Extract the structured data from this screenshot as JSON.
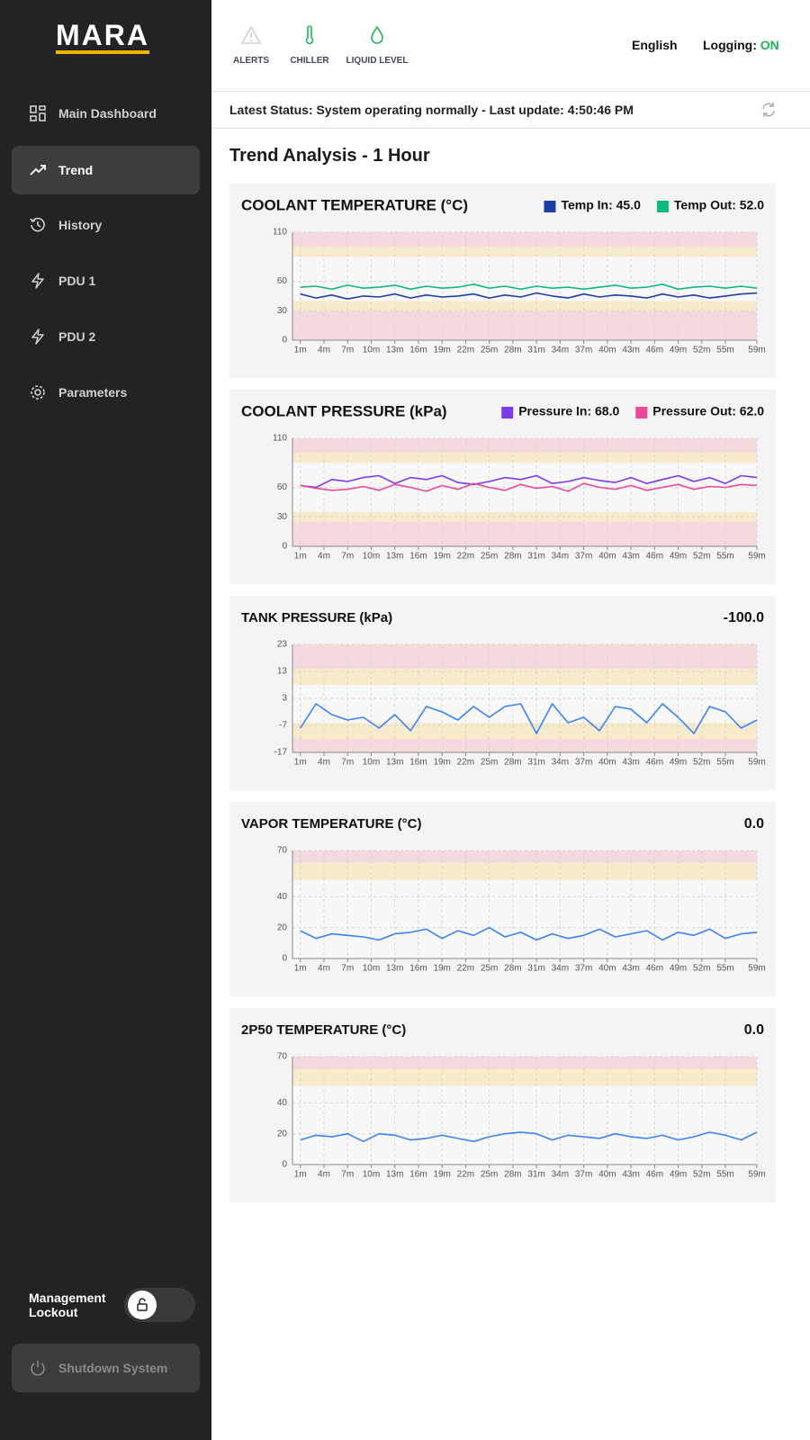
{
  "sidebar": {
    "logo": "MARA",
    "nav": [
      "Main Dashboard",
      "Trend",
      "History",
      "PDU 1",
      "PDU 2",
      "Parameters"
    ],
    "active": 1,
    "lockout": "Management Lockout",
    "shutdown": "Shutdown System"
  },
  "topbar": {
    "icons": [
      "ALERTS",
      "CHILLER",
      "LIQUID LEVEL"
    ],
    "language": "English",
    "logging_label": "Logging:",
    "logging_state": "ON"
  },
  "status": "Latest Status: System operating normally - Last update: 4:50:46 PM",
  "heading": "Trend Analysis - 1 Hour",
  "chart_data": [
    {
      "type": "line",
      "title": "COOLANT TEMPERATURE (°C)",
      "x": [
        1,
        3,
        5,
        7,
        9,
        11,
        13,
        15,
        17,
        19,
        21,
        23,
        25,
        27,
        29,
        31,
        33,
        35,
        37,
        39,
        41,
        43,
        45,
        47,
        49,
        51,
        53,
        55,
        57,
        59
      ],
      "series": [
        {
          "name": "Temp In: 45.0",
          "color": "#1e3fa8",
          "values": [
            47,
            43,
            46,
            42,
            45,
            44,
            47,
            43,
            46,
            44,
            45,
            47,
            43,
            46,
            44,
            48,
            45,
            43,
            47,
            44,
            46,
            45,
            43,
            47,
            44,
            46,
            43,
            45,
            47,
            48
          ]
        },
        {
          "name": "Temp Out: 52.0",
          "color": "#10b981",
          "values": [
            54,
            55,
            52,
            56,
            53,
            54,
            56,
            52,
            55,
            53,
            54,
            57,
            53,
            55,
            52,
            55,
            53,
            54,
            52,
            54,
            56,
            53,
            54,
            57,
            52,
            54,
            55,
            53,
            55,
            53
          ]
        }
      ],
      "xlim": [
        0,
        59
      ],
      "xticks": [
        {
          "value": 1,
          "label": "1m"
        },
        {
          "value": 4,
          "label": "4m"
        },
        {
          "value": 7,
          "label": "7m"
        },
        {
          "value": 10,
          "label": "10m"
        },
        {
          "value": 13,
          "label": "13m"
        },
        {
          "value": 16,
          "label": "16m"
        },
        {
          "value": 19,
          "label": "19m"
        },
        {
          "value": 22,
          "label": "22m"
        },
        {
          "value": 25,
          "label": "25m"
        },
        {
          "value": 28,
          "label": "28m"
        },
        {
          "value": 31,
          "label": "31m"
        },
        {
          "value": 34,
          "label": "34m"
        },
        {
          "value": 37,
          "label": "37m"
        },
        {
          "value": 40,
          "label": "40m"
        },
        {
          "value": 43,
          "label": "43m"
        },
        {
          "value": 46,
          "label": "46m"
        },
        {
          "value": 49,
          "label": "49m"
        },
        {
          "value": 52,
          "label": "52m"
        },
        {
          "value": 55,
          "label": "55m"
        },
        {
          "value": 59,
          "label": "59m"
        }
      ],
      "ylim": [
        0,
        110
      ],
      "yticks": [
        0,
        30,
        60,
        110
      ],
      "zones": [
        {
          "from": 95,
          "to": 110,
          "color": "#f5dadd"
        },
        {
          "from": 85,
          "to": 95,
          "color": "#f7ebcc"
        },
        {
          "from": 30,
          "to": 40,
          "color": "#f7ebcc"
        },
        {
          "from": 0,
          "to": 30,
          "color": "#f5dadd"
        }
      ],
      "grid": true
    },
    {
      "type": "line",
      "title": "COOLANT PRESSURE (kPa)",
      "x": [
        1,
        3,
        5,
        7,
        9,
        11,
        13,
        15,
        17,
        19,
        21,
        23,
        25,
        27,
        29,
        31,
        33,
        35,
        37,
        39,
        41,
        43,
        45,
        47,
        49,
        51,
        53,
        55,
        57,
        59
      ],
      "series": [
        {
          "name": "Pressure In: 68.0",
          "color": "#7c3aed",
          "values": [
            62,
            60,
            68,
            66,
            70,
            72,
            64,
            70,
            68,
            72,
            65,
            63,
            66,
            70,
            68,
            72,
            64,
            66,
            70,
            67,
            65,
            70,
            64,
            68,
            72,
            66,
            70,
            64,
            72,
            70
          ]
        },
        {
          "name": "Pressure Out: 62.0",
          "color": "#ec4899",
          "values": [
            62,
            59,
            57,
            58,
            61,
            57,
            63,
            60,
            56,
            62,
            58,
            64,
            60,
            57,
            63,
            59,
            61,
            56,
            64,
            60,
            58,
            62,
            57,
            60,
            63,
            58,
            61,
            60,
            63,
            62
          ]
        }
      ],
      "xlim": [
        0,
        59
      ],
      "xticks": [
        {
          "value": 1,
          "label": "1m"
        },
        {
          "value": 4,
          "label": "4m"
        },
        {
          "value": 7,
          "label": "7m"
        },
        {
          "value": 10,
          "label": "10m"
        },
        {
          "value": 13,
          "label": "13m"
        },
        {
          "value": 16,
          "label": "16m"
        },
        {
          "value": 19,
          "label": "19m"
        },
        {
          "value": 22,
          "label": "22m"
        },
        {
          "value": 25,
          "label": "25m"
        },
        {
          "value": 28,
          "label": "28m"
        },
        {
          "value": 31,
          "label": "31m"
        },
        {
          "value": 34,
          "label": "34m"
        },
        {
          "value": 37,
          "label": "37m"
        },
        {
          "value": 40,
          "label": "40m"
        },
        {
          "value": 43,
          "label": "43m"
        },
        {
          "value": 46,
          "label": "46m"
        },
        {
          "value": 49,
          "label": "49m"
        },
        {
          "value": 52,
          "label": "52m"
        },
        {
          "value": 55,
          "label": "55m"
        },
        {
          "value": 59,
          "label": "59m"
        }
      ],
      "ylim": [
        0,
        110
      ],
      "yticks": [
        0,
        30,
        60,
        110
      ],
      "zones": [
        {
          "from": 95,
          "to": 110,
          "color": "#f5dadd"
        },
        {
          "from": 85,
          "to": 95,
          "color": "#f7ebcc"
        },
        {
          "from": 25,
          "to": 35,
          "color": "#f7ebcc"
        },
        {
          "from": 0,
          "to": 25,
          "color": "#f5dadd"
        }
      ],
      "grid": true
    },
    {
      "type": "line",
      "title": "TANK PRESSURE (kPa)",
      "current": "-100.0",
      "x": [
        1,
        3,
        5,
        7,
        9,
        11,
        13,
        15,
        17,
        19,
        21,
        23,
        25,
        27,
        29,
        31,
        33,
        35,
        37,
        39,
        41,
        43,
        45,
        47,
        49,
        51,
        53,
        55,
        57,
        59
      ],
      "values": [
        -8,
        1,
        -3,
        -5,
        -4,
        -8,
        -3,
        -9,
        0,
        -2,
        -5,
        0,
        -4,
        0,
        1,
        -10,
        1,
        -6,
        -4,
        -9,
        0,
        -1,
        -6,
        1,
        -4,
        -10,
        0,
        -2,
        -8,
        -5
      ],
      "color": "#3b82f6",
      "xlim": [
        0,
        59
      ],
      "xticks": [
        {
          "value": 1,
          "label": "1m"
        },
        {
          "value": 4,
          "label": "4m"
        },
        {
          "value": 7,
          "label": "7m"
        },
        {
          "value": 10,
          "label": "10m"
        },
        {
          "value": 13,
          "label": "13m"
        },
        {
          "value": 16,
          "label": "16m"
        },
        {
          "value": 19,
          "label": "19m"
        },
        {
          "value": 22,
          "label": "22m"
        },
        {
          "value": 25,
          "label": "25m"
        },
        {
          "value": 28,
          "label": "28m"
        },
        {
          "value": 31,
          "label": "31m"
        },
        {
          "value": 34,
          "label": "34m"
        },
        {
          "value": 37,
          "label": "37m"
        },
        {
          "value": 40,
          "label": "40m"
        },
        {
          "value": 43,
          "label": "43m"
        },
        {
          "value": 46,
          "label": "46m"
        },
        {
          "value": 49,
          "label": "49m"
        },
        {
          "value": 52,
          "label": "52m"
        },
        {
          "value": 55,
          "label": "55m"
        },
        {
          "value": 59,
          "label": "59m"
        }
      ],
      "ylim": [
        -17,
        23
      ],
      "yticks": [
        -17,
        -7,
        3,
        13,
        23
      ],
      "zones": [
        {
          "from": 14,
          "to": 23,
          "color": "#f5dadd"
        },
        {
          "from": 8,
          "to": 14,
          "color": "#f7ebcc"
        },
        {
          "from": -12,
          "to": -6,
          "color": "#f7ebcc"
        },
        {
          "from": -17,
          "to": -12,
          "color": "#f5dadd"
        }
      ],
      "grid": true
    },
    {
      "type": "line",
      "title": "VAPOR TEMPERATURE (°C)",
      "current": "0.0",
      "x": [
        1,
        3,
        5,
        7,
        9,
        11,
        13,
        15,
        17,
        19,
        21,
        23,
        25,
        27,
        29,
        31,
        33,
        35,
        37,
        39,
        41,
        43,
        45,
        47,
        49,
        51,
        53,
        55,
        57,
        59
      ],
      "values": [
        18,
        13,
        16,
        15,
        14,
        12,
        16,
        17,
        19,
        13,
        18,
        15,
        20,
        14,
        17,
        12,
        16,
        13,
        15,
        19,
        14,
        16,
        18,
        12,
        17,
        15,
        19,
        13,
        16,
        17
      ],
      "color": "#3b82f6",
      "xlim": [
        0,
        59
      ],
      "xticks": [
        {
          "value": 1,
          "label": "1m"
        },
        {
          "value": 4,
          "label": "4m"
        },
        {
          "value": 7,
          "label": "7m"
        },
        {
          "value": 10,
          "label": "10m"
        },
        {
          "value": 13,
          "label": "13m"
        },
        {
          "value": 16,
          "label": "16m"
        },
        {
          "value": 19,
          "label": "19m"
        },
        {
          "value": 22,
          "label": "22m"
        },
        {
          "value": 25,
          "label": "25m"
        },
        {
          "value": 28,
          "label": "28m"
        },
        {
          "value": 31,
          "label": "31m"
        },
        {
          "value": 34,
          "label": "34m"
        },
        {
          "value": 37,
          "label": "37m"
        },
        {
          "value": 40,
          "label": "40m"
        },
        {
          "value": 43,
          "label": "43m"
        },
        {
          "value": 46,
          "label": "46m"
        },
        {
          "value": 49,
          "label": "49m"
        },
        {
          "value": 52,
          "label": "52m"
        },
        {
          "value": 55,
          "label": "55m"
        },
        {
          "value": 59,
          "label": "59m"
        }
      ],
      "ylim": [
        0,
        70
      ],
      "yticks": [
        0,
        20,
        40,
        70
      ],
      "zones": [
        {
          "from": 62,
          "to": 70,
          "color": "#f5dadd"
        },
        {
          "from": 51,
          "to": 62,
          "color": "#f7ebcc"
        }
      ],
      "grid": true
    },
    {
      "type": "line",
      "title": "2P50 TEMPERATURE (°C)",
      "current": "0.0",
      "x": [
        1,
        3,
        5,
        7,
        9,
        11,
        13,
        15,
        17,
        19,
        21,
        23,
        25,
        27,
        29,
        31,
        33,
        35,
        37,
        39,
        41,
        43,
        45,
        47,
        49,
        51,
        53,
        55,
        57,
        59
      ],
      "values": [
        16,
        19,
        18,
        20,
        15,
        20,
        19,
        16,
        17,
        19,
        17,
        15,
        18,
        20,
        21,
        20,
        16,
        19,
        18,
        17,
        20,
        18,
        17,
        19,
        16,
        18,
        21,
        19,
        16,
        21
      ],
      "color": "#3b82f6",
      "xlim": [
        0,
        59
      ],
      "xticks": [
        {
          "value": 1,
          "label": "1m"
        },
        {
          "value": 4,
          "label": "4m"
        },
        {
          "value": 7,
          "label": "7m"
        },
        {
          "value": 10,
          "label": "10m"
        },
        {
          "value": 13,
          "label": "13m"
        },
        {
          "value": 16,
          "label": "16m"
        },
        {
          "value": 19,
          "label": "19m"
        },
        {
          "value": 22,
          "label": "22m"
        },
        {
          "value": 25,
          "label": "25m"
        },
        {
          "value": 28,
          "label": "28m"
        },
        {
          "value": 31,
          "label": "31m"
        },
        {
          "value": 34,
          "label": "34m"
        },
        {
          "value": 37,
          "label": "37m"
        },
        {
          "value": 40,
          "label": "40m"
        },
        {
          "value": 43,
          "label": "43m"
        },
        {
          "value": 46,
          "label": "46m"
        },
        {
          "value": 49,
          "label": "49m"
        },
        {
          "value": 52,
          "label": "52m"
        },
        {
          "value": 55,
          "label": "55m"
        },
        {
          "value": 59,
          "label": "59m"
        }
      ],
      "ylim": [
        0,
        70
      ],
      "yticks": [
        0,
        20,
        40,
        70
      ],
      "zones": [
        {
          "from": 62,
          "to": 70,
          "color": "#f5dadd"
        },
        {
          "from": 51,
          "to": 62,
          "color": "#f7ebcc"
        }
      ],
      "grid": true
    }
  ]
}
